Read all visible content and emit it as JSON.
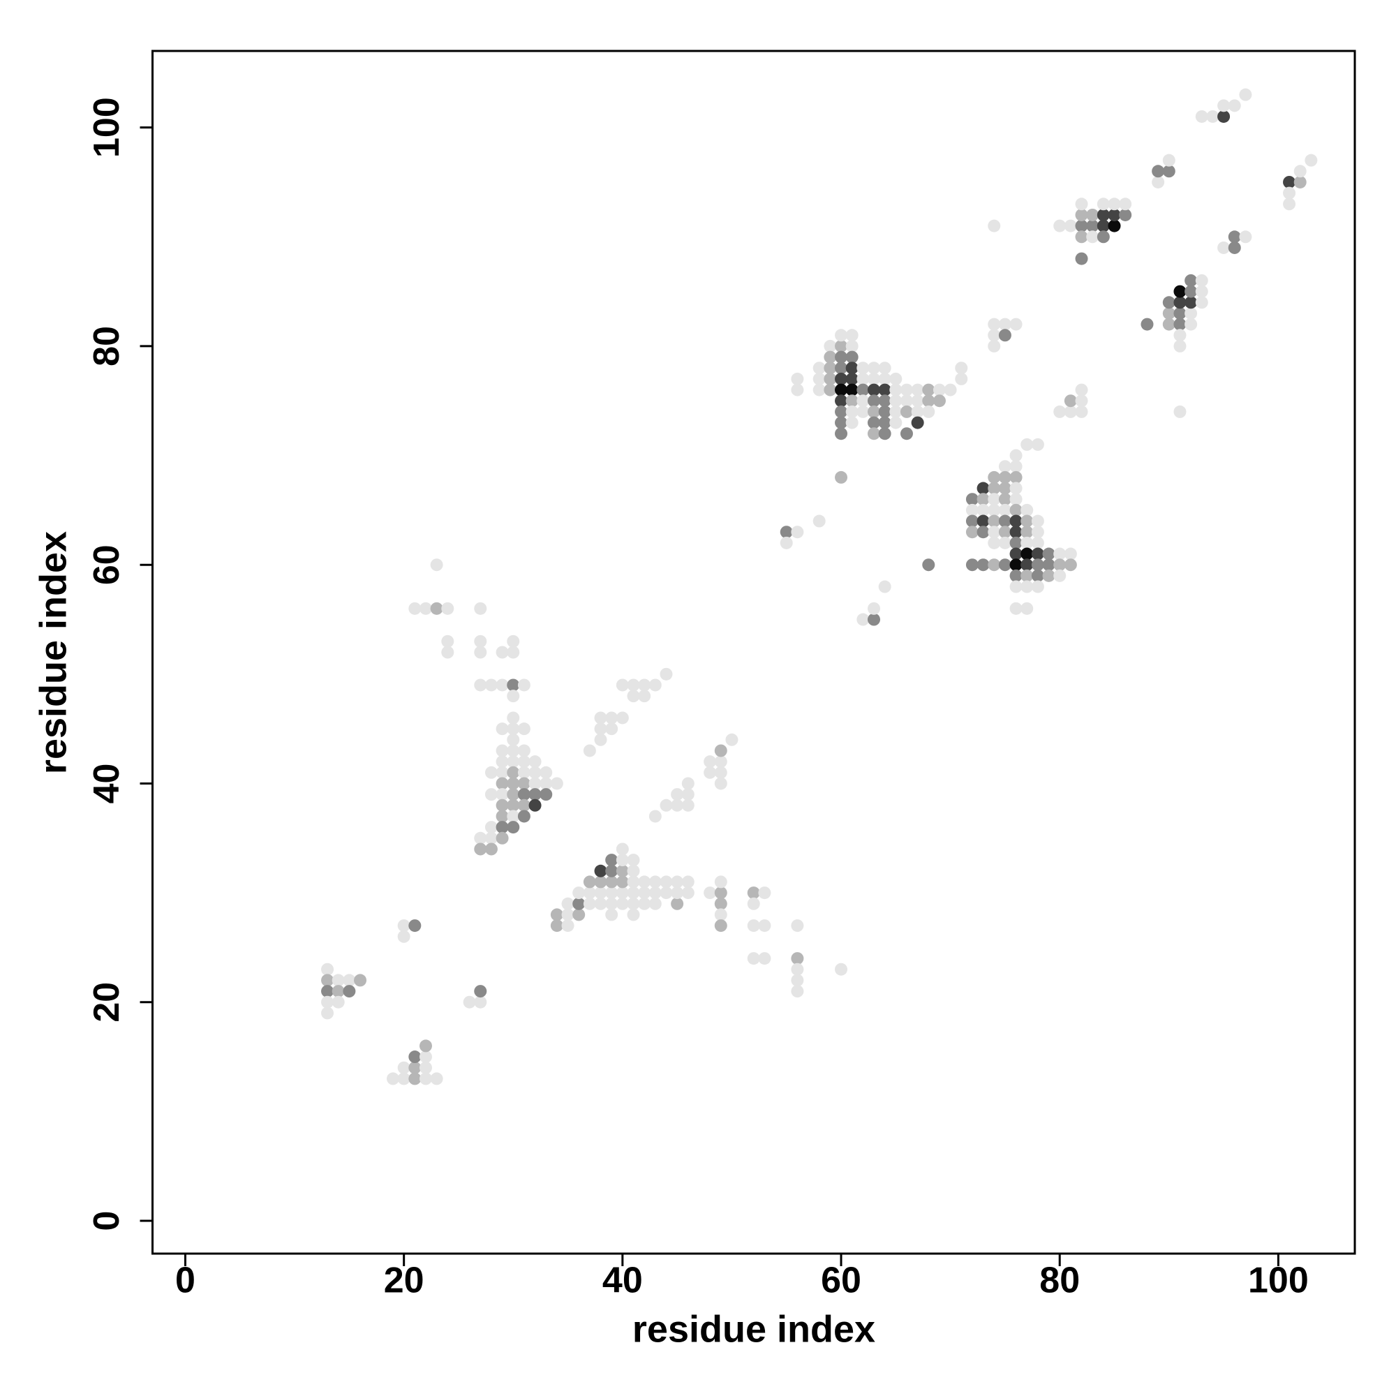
{
  "chart_data": {
    "type": "scatter",
    "xlabel": "residue index",
    "ylabel": "residue index",
    "xlim": [
      -3,
      107
    ],
    "ylim": [
      -3,
      107
    ],
    "xticks": [
      0,
      20,
      40,
      60,
      80,
      100
    ],
    "yticks": [
      0,
      20,
      40,
      60,
      80,
      100
    ],
    "x": [
      13,
      13,
      14,
      15,
      16,
      13,
      14,
      15,
      13,
      14,
      13,
      19,
      20,
      21,
      22,
      23,
      20,
      21,
      22,
      21,
      22,
      22,
      20,
      20,
      21,
      26,
      27,
      27,
      21,
      22,
      23,
      24,
      23,
      24,
      24,
      27,
      27,
      27,
      27,
      28,
      29,
      30,
      31,
      30,
      29,
      30,
      30,
      30,
      29,
      30,
      31,
      30,
      29,
      30,
      31,
      29,
      30,
      31,
      32,
      28,
      29,
      30,
      31,
      32,
      33,
      29,
      30,
      31,
      32,
      33,
      34,
      28,
      29,
      30,
      31,
      32,
      33,
      29,
      30,
      31,
      32,
      29,
      30,
      31,
      28,
      29,
      30,
      27,
      28,
      29,
      27,
      28,
      37,
      38,
      38,
      39,
      38,
      39,
      40,
      40,
      41,
      42,
      43,
      41,
      42,
      44,
      43,
      44,
      45,
      46,
      45,
      46,
      46,
      48,
      49,
      48,
      49,
      49,
      49,
      50,
      34,
      35,
      34,
      35,
      36,
      35,
      36,
      37,
      38,
      39,
      40,
      41,
      42,
      43,
      45,
      36,
      37,
      38,
      39,
      40,
      41,
      42,
      43,
      44,
      45,
      46,
      37,
      38,
      39,
      40,
      41,
      42,
      43,
      44,
      45,
      46,
      38,
      39,
      40,
      41,
      39,
      40,
      41,
      40,
      39,
      41,
      48,
      49,
      49,
      49,
      49,
      49,
      52,
      53,
      52,
      52,
      53,
      52,
      53,
      56,
      56,
      56,
      56,
      56,
      60,
      55,
      56,
      55,
      58,
      60,
      62,
      63,
      63,
      64,
      68,
      59,
      60,
      60,
      61,
      61,
      59,
      60,
      61,
      58,
      59,
      60,
      61,
      62,
      63,
      64,
      56,
      58,
      59,
      60,
      61,
      62,
      63,
      64,
      65,
      56,
      58,
      59,
      60,
      61,
      62,
      63,
      64,
      65,
      66,
      67,
      68,
      69,
      70,
      60,
      61,
      62,
      63,
      64,
      65,
      66,
      67,
      68,
      69,
      60,
      61,
      62,
      63,
      64,
      65,
      66,
      67,
      68,
      60,
      61,
      63,
      64,
      65,
      67,
      60,
      63,
      64,
      66,
      71,
      71,
      74,
      74,
      75,
      76,
      74,
      75,
      74,
      76,
      77,
      78,
      75,
      76,
      74,
      75,
      76,
      73,
      74,
      75,
      76,
      72,
      73,
      74,
      75,
      76,
      72,
      73,
      74,
      75,
      76,
      77,
      72,
      73,
      74,
      75,
      76,
      77,
      78,
      72,
      73,
      74,
      75,
      76,
      77,
      78,
      74,
      75,
      76,
      77,
      78,
      76,
      77,
      78,
      79,
      80,
      81,
      72,
      73,
      74,
      75,
      76,
      77,
      78,
      79,
      80,
      81,
      76,
      77,
      78,
      79,
      80,
      76,
      77,
      78,
      76,
      77,
      80,
      81,
      82,
      81,
      82,
      82,
      80,
      81,
      82,
      83,
      84,
      85,
      82,
      83,
      84,
      85,
      86,
      82,
      84,
      85,
      86,
      82,
      83,
      84,
      82,
      88,
      90,
      91,
      92,
      90,
      91,
      92,
      90,
      91,
      92,
      93,
      91,
      92,
      93,
      92,
      93,
      91,
      91,
      91,
      89,
      89,
      90,
      90,
      95,
      96,
      96,
      97,
      93,
      94,
      95,
      95,
      96,
      97,
      101,
      102,
      101,
      101,
      102,
      103
    ],
    "values": [
      23,
      22,
      22,
      22,
      22,
      21,
      21,
      21,
      20,
      20,
      19,
      13,
      13,
      13,
      13,
      13,
      14,
      14,
      14,
      15,
      15,
      16,
      27,
      26,
      27,
      20,
      20,
      21,
      56,
      56,
      56,
      56,
      60,
      53,
      52,
      56,
      53,
      52,
      49,
      49,
      49,
      49,
      49,
      48,
      52,
      53,
      52,
      46,
      45,
      45,
      45,
      44,
      43,
      43,
      43,
      42,
      42,
      42,
      42,
      41,
      41,
      41,
      41,
      41,
      41,
      40,
      40,
      40,
      40,
      40,
      40,
      39,
      39,
      39,
      39,
      39,
      39,
      38,
      38,
      38,
      38,
      37,
      37,
      37,
      36,
      36,
      36,
      35,
      35,
      35,
      34,
      34,
      43,
      44,
      45,
      45,
      46,
      46,
      46,
      49,
      49,
      49,
      49,
      48,
      48,
      50,
      37,
      38,
      38,
      38,
      39,
      39,
      40,
      41,
      41,
      42,
      42,
      40,
      43,
      44,
      27,
      27,
      28,
      28,
      28,
      29,
      29,
      29,
      29,
      29,
      29,
      29,
      29,
      29,
      29,
      30,
      30,
      30,
      30,
      30,
      30,
      30,
      30,
      30,
      30,
      30,
      31,
      31,
      31,
      31,
      31,
      31,
      31,
      31,
      31,
      31,
      32,
      32,
      32,
      32,
      33,
      33,
      33,
      34,
      28,
      28,
      30,
      30,
      31,
      29,
      28,
      27,
      30,
      30,
      29,
      27,
      27,
      24,
      24,
      27,
      24,
      23,
      22,
      21,
      23,
      63,
      63,
      62,
      64,
      68,
      55,
      55,
      56,
      58,
      60,
      80,
      80,
      81,
      81,
      80,
      79,
      79,
      79,
      78,
      78,
      78,
      78,
      78,
      78,
      78,
      77,
      77,
      77,
      77,
      77,
      77,
      77,
      77,
      77,
      76,
      76,
      76,
      76,
      76,
      76,
      76,
      76,
      76,
      76,
      76,
      76,
      76,
      76,
      75,
      75,
      75,
      75,
      75,
      75,
      75,
      75,
      75,
      75,
      74,
      74,
      74,
      74,
      74,
      74,
      74,
      74,
      74,
      73,
      73,
      73,
      73,
      73,
      73,
      72,
      72,
      72,
      72,
      78,
      77,
      91,
      82,
      82,
      82,
      81,
      81,
      80,
      70,
      71,
      71,
      69,
      69,
      68,
      68,
      68,
      67,
      67,
      67,
      67,
      66,
      66,
      66,
      66,
      66,
      65,
      65,
      65,
      65,
      65,
      65,
      64,
      64,
      64,
      64,
      64,
      64,
      64,
      63,
      63,
      63,
      63,
      63,
      63,
      63,
      62,
      62,
      62,
      62,
      62,
      61,
      61,
      61,
      61,
      61,
      61,
      60,
      60,
      60,
      60,
      60,
      60,
      60,
      60,
      60,
      60,
      59,
      59,
      59,
      59,
      59,
      58,
      58,
      58,
      56,
      56,
      74,
      74,
      74,
      75,
      75,
      76,
      91,
      91,
      91,
      91,
      91,
      91,
      92,
      92,
      92,
      92,
      92,
      93,
      93,
      93,
      93,
      90,
      90,
      90,
      88,
      82,
      82,
      82,
      82,
      83,
      83,
      83,
      84,
      84,
      84,
      84,
      85,
      85,
      85,
      86,
      86,
      81,
      80,
      74,
      95,
      96,
      96,
      97,
      89,
      89,
      90,
      90,
      101,
      101,
      101,
      102,
      102,
      103,
      95,
      95,
      94,
      93,
      96,
      97
    ],
    "shade": [
      0,
      0.2,
      0,
      0,
      0.2,
      0.4,
      0.2,
      0.4,
      0,
      0,
      0,
      0,
      0,
      0.2,
      0,
      0,
      0,
      0.2,
      0,
      0.4,
      0,
      0.2,
      0,
      0,
      0.4,
      0,
      0,
      0.4,
      0,
      0,
      0.2,
      0,
      0,
      0,
      0,
      0,
      0,
      0,
      0,
      0,
      0,
      0.4,
      0,
      0,
      0,
      0,
      0,
      0,
      0,
      0,
      0,
      0,
      0,
      0,
      0,
      0,
      0,
      0,
      0,
      0,
      0,
      0.2,
      0,
      0,
      0,
      0.2,
      0.2,
      0.2,
      0,
      0,
      0,
      0,
      0,
      0.2,
      0.4,
      0.4,
      0.4,
      0.2,
      0.2,
      0.2,
      0.7,
      0.2,
      0,
      0.4,
      0,
      0.4,
      0.4,
      0,
      0,
      0.2,
      0.2,
      0.2,
      0,
      0,
      0,
      0,
      0,
      0,
      0,
      0,
      0,
      0,
      0,
      0,
      0,
      0,
      0,
      0,
      0,
      0,
      0,
      0,
      0,
      0,
      0,
      0,
      0,
      0,
      0.2,
      0,
      0.2,
      0,
      0.2,
      0,
      0.2,
      0,
      0.4,
      0,
      0,
      0,
      0,
      0,
      0,
      0,
      0.2,
      0,
      0,
      0,
      0,
      0,
      0,
      0,
      0,
      0,
      0,
      0,
      0.2,
      0.2,
      0.2,
      0.2,
      0,
      0,
      0,
      0,
      0,
      0,
      0.7,
      0.4,
      0.2,
      0,
      0.4,
      0,
      0,
      0,
      0,
      0,
      0,
      0.2,
      0,
      0.2,
      0,
      0.2,
      0.2,
      0,
      0,
      0,
      0,
      0,
      0,
      0,
      0.2,
      0,
      0,
      0,
      0,
      0.4,
      0,
      0,
      0,
      0.2,
      0,
      0.4,
      0,
      0,
      0.4,
      0,
      0.2,
      0,
      0,
      0,
      0.2,
      0.4,
      0.4,
      0,
      0.2,
      0.4,
      0.7,
      0,
      0,
      0,
      0,
      0,
      0.2,
      0.7,
      0.7,
      0,
      0,
      0,
      0,
      0,
      0,
      0.2,
      0.95,
      0.95,
      0.4,
      0.7,
      0.7,
      0,
      0,
      0,
      0.2,
      0,
      0,
      0.7,
      0.2,
      0,
      0.4,
      0.4,
      0,
      0,
      0,
      0.2,
      0.2,
      0.4,
      0,
      0,
      0.2,
      0.4,
      0,
      0.2,
      0,
      0,
      0.4,
      0,
      0.4,
      0.4,
      0,
      0.7,
      0.4,
      0.2,
      0.4,
      0.4,
      0,
      0,
      0,
      0,
      0,
      0,
      0,
      0.4,
      0,
      0,
      0,
      0,
      0,
      0,
      0.2,
      0.2,
      0.2,
      0.7,
      0.2,
      0.2,
      0,
      0.4,
      0.2,
      0,
      0.2,
      0,
      0,
      0,
      0,
      0,
      0.2,
      0,
      0.4,
      0.7,
      0.2,
      0.4,
      0.7,
      0.2,
      0,
      0.2,
      0.4,
      0,
      0.2,
      0.7,
      0.2,
      0,
      0,
      0,
      0.4,
      0,
      0,
      0.7,
      0.95,
      0.7,
      0.4,
      0,
      0,
      0.4,
      0.4,
      0.2,
      0.4,
      0.95,
      0.7,
      0.4,
      0.4,
      0.2,
      0.2,
      0.4,
      0.2,
      0.4,
      0.2,
      0,
      0,
      0,
      0,
      0,
      0,
      0,
      0,
      0,
      0.2,
      0,
      0,
      0,
      0,
      0.4,
      0.4,
      0.7,
      0.95,
      0.2,
      0.2,
      0.7,
      0.7,
      0.4,
      0,
      0,
      0,
      0,
      0.2,
      0,
      0.4,
      0.4,
      0.4,
      0.2,
      0.4,
      0,
      0.2,
      0.4,
      0,
      0.4,
      0.7,
      0.7,
      0,
      0.95,
      0.4,
      0,
      0.4,
      0,
      0,
      0,
      0,
      0,
      0.4,
      0.4,
      0,
      0,
      0.4,
      0.4,
      0,
      0,
      0,
      0.7,
      0,
      0,
      0,
      0.7,
      0.2,
      0,
      0,
      0,
      0
    ]
  }
}
